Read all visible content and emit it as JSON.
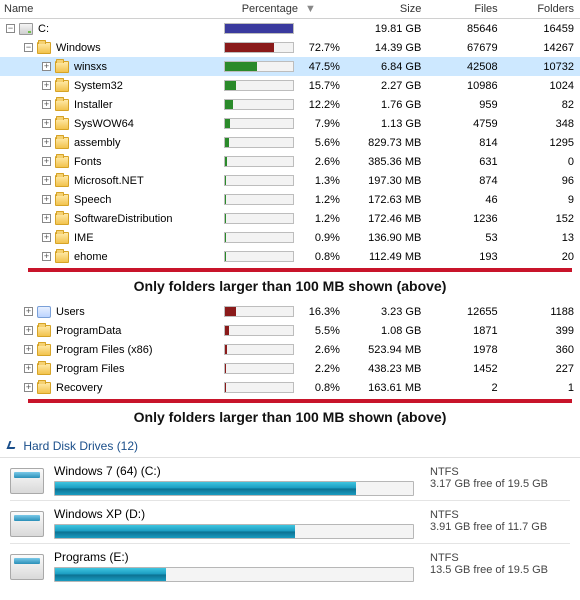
{
  "columns": {
    "name": "Name",
    "percentage": "Percentage",
    "size": "Size",
    "files": "Files",
    "folders": "Folders"
  },
  "bar_colors": {
    "drive_c": "#3a3a9e",
    "windows": "#8a1a1a",
    "winsxs": "#2a8a2a",
    "generic": "#2a8a2a",
    "users": "#8a1a1a",
    "border": "#bdbdbd",
    "track": "#f3f3f3"
  },
  "caption": "Only folders larger than 100 MB shown (above)",
  "rows_top": [
    {
      "indent": 0,
      "expander": "-",
      "icon": "drive",
      "name": "C:",
      "perc_text": "",
      "perc_val": 100,
      "bar_color": "#3a3a9e",
      "size": "19.81 GB",
      "files": "85646",
      "folders": "16459",
      "selected": false
    },
    {
      "indent": 1,
      "expander": "-",
      "icon": "folder",
      "name": "Windows",
      "perc_text": "72.7%",
      "perc_val": 72.7,
      "bar_color": "#8a1a1a",
      "size": "14.39 GB",
      "files": "67679",
      "folders": "14267",
      "selected": false
    },
    {
      "indent": 2,
      "expander": "+",
      "icon": "folder",
      "name": "winsxs",
      "perc_text": "47.5%",
      "perc_val": 47.5,
      "bar_color": "#2a8a2a",
      "size": "6.84 GB",
      "files": "42508",
      "folders": "10732",
      "selected": true
    },
    {
      "indent": 2,
      "expander": "+",
      "icon": "folder",
      "name": "System32",
      "perc_text": "15.7%",
      "perc_val": 15.7,
      "bar_color": "#2a8a2a",
      "size": "2.27 GB",
      "files": "10986",
      "folders": "1024",
      "selected": false
    },
    {
      "indent": 2,
      "expander": "+",
      "icon": "folder",
      "name": "Installer",
      "perc_text": "12.2%",
      "perc_val": 12.2,
      "bar_color": "#2a8a2a",
      "size": "1.76 GB",
      "files": "959",
      "folders": "82",
      "selected": false
    },
    {
      "indent": 2,
      "expander": "+",
      "icon": "folder",
      "name": "SysWOW64",
      "perc_text": "7.9%",
      "perc_val": 7.9,
      "bar_color": "#2a8a2a",
      "size": "1.13 GB",
      "files": "4759",
      "folders": "348",
      "selected": false
    },
    {
      "indent": 2,
      "expander": "+",
      "icon": "folder",
      "name": "assembly",
      "perc_text": "5.6%",
      "perc_val": 5.6,
      "bar_color": "#2a8a2a",
      "size": "829.73 MB",
      "files": "814",
      "folders": "1295",
      "selected": false
    },
    {
      "indent": 2,
      "expander": "+",
      "icon": "folder",
      "name": "Fonts",
      "perc_text": "2.6%",
      "perc_val": 2.6,
      "bar_color": "#2a8a2a",
      "size": "385.36 MB",
      "files": "631",
      "folders": "0",
      "selected": false
    },
    {
      "indent": 2,
      "expander": "+",
      "icon": "folder",
      "name": "Microsoft.NET",
      "perc_text": "1.3%",
      "perc_val": 1.3,
      "bar_color": "#2a8a2a",
      "size": "197.30 MB",
      "files": "874",
      "folders": "96",
      "selected": false
    },
    {
      "indent": 2,
      "expander": "+",
      "icon": "folder",
      "name": "Speech",
      "perc_text": "1.2%",
      "perc_val": 1.2,
      "bar_color": "#2a8a2a",
      "size": "172.63 MB",
      "files": "46",
      "folders": "9",
      "selected": false
    },
    {
      "indent": 2,
      "expander": "+",
      "icon": "folder",
      "name": "SoftwareDistribution",
      "perc_text": "1.2%",
      "perc_val": 1.2,
      "bar_color": "#2a8a2a",
      "size": "172.46 MB",
      "files": "1236",
      "folders": "152",
      "selected": false
    },
    {
      "indent": 2,
      "expander": "+",
      "icon": "folder",
      "name": "IME",
      "perc_text": "0.9%",
      "perc_val": 0.9,
      "bar_color": "#2a8a2a",
      "size": "136.90 MB",
      "files": "53",
      "folders": "13",
      "selected": false
    },
    {
      "indent": 2,
      "expander": "+",
      "icon": "folder",
      "name": "ehome",
      "perc_text": "0.8%",
      "perc_val": 0.8,
      "bar_color": "#2a8a2a",
      "size": "112.49 MB",
      "files": "193",
      "folders": "20",
      "selected": false
    }
  ],
  "rows_mid": [
    {
      "indent": 1,
      "expander": "+",
      "icon": "users",
      "name": "Users",
      "perc_text": "16.3%",
      "perc_val": 16.3,
      "bar_color": "#8a1a1a",
      "size": "3.23 GB",
      "files": "12655",
      "folders": "1188",
      "selected": false
    },
    {
      "indent": 1,
      "expander": "+",
      "icon": "folder",
      "name": "ProgramData",
      "perc_text": "5.5%",
      "perc_val": 5.5,
      "bar_color": "#8a1a1a",
      "size": "1.08 GB",
      "files": "1871",
      "folders": "399",
      "selected": false
    },
    {
      "indent": 1,
      "expander": "+",
      "icon": "folder",
      "name": "Program Files (x86)",
      "perc_text": "2.6%",
      "perc_val": 2.6,
      "bar_color": "#8a1a1a",
      "size": "523.94 MB",
      "files": "1978",
      "folders": "360",
      "selected": false
    },
    {
      "indent": 1,
      "expander": "+",
      "icon": "folder",
      "name": "Program Files",
      "perc_text": "2.2%",
      "perc_val": 2.2,
      "bar_color": "#8a1a1a",
      "size": "438.23 MB",
      "files": "1452",
      "folders": "227",
      "selected": false
    },
    {
      "indent": 1,
      "expander": "+",
      "icon": "folder",
      "name": "Recovery",
      "perc_text": "0.8%",
      "perc_val": 0.8,
      "bar_color": "#8a1a1a",
      "size": "163.61 MB",
      "files": "2",
      "folders": "1",
      "selected": false
    }
  ],
  "drives_header": "Hard Disk Drives (12)",
  "drives": [
    {
      "title": "Windows 7 (64) (C:)",
      "fs": "NTFS",
      "free": "3.17 GB free of 19.5 GB",
      "used_pct": 84
    },
    {
      "title": "Windows XP (D:)",
      "fs": "NTFS",
      "free": "3.91 GB free of 11.7 GB",
      "used_pct": 67
    },
    {
      "title": "Programs (E:)",
      "fs": "NTFS",
      "free": "13.5 GB free of 19.5 GB",
      "used_pct": 31
    }
  ]
}
